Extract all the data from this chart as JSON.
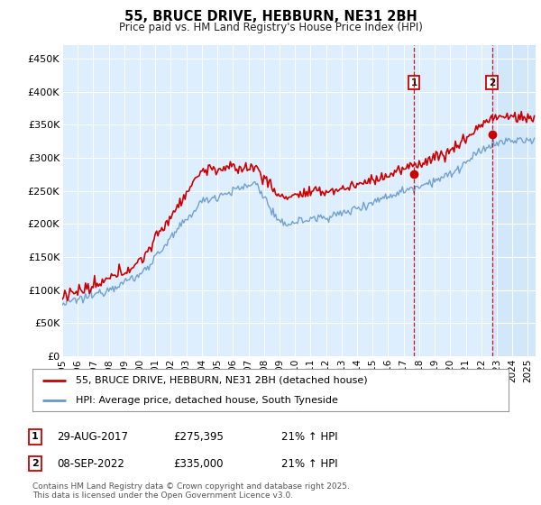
{
  "title": "55, BRUCE DRIVE, HEBBURN, NE31 2BH",
  "subtitle": "Price paid vs. HM Land Registry's House Price Index (HPI)",
  "ylabel_ticks": [
    "£0",
    "£50K",
    "£100K",
    "£150K",
    "£200K",
    "£250K",
    "£300K",
    "£350K",
    "£400K",
    "£450K"
  ],
  "ytick_values": [
    0,
    50000,
    100000,
    150000,
    200000,
    250000,
    300000,
    350000,
    400000,
    450000
  ],
  "ylim": [
    0,
    470000
  ],
  "xlim_start": 1995,
  "xlim_end": 2025.5,
  "marker1_x": 2017.66,
  "marker1_y": 275395,
  "marker2_x": 2022.69,
  "marker2_y": 335000,
  "marker1_label_date": "29-AUG-2017",
  "marker1_label_price": "£275,395",
  "marker1_label_hpi": "21% ↑ HPI",
  "marker2_label_date": "08-SEP-2022",
  "marker2_label_price": "£335,000",
  "marker2_label_hpi": "21% ↑ HPI",
  "legend_line1": "55, BRUCE DRIVE, HEBBURN, NE31 2BH (detached house)",
  "legend_line2": "HPI: Average price, detached house, South Tyneside",
  "footnote1": "Contains HM Land Registry data © Crown copyright and database right 2025.",
  "footnote2": "This data is licensed under the Open Government Licence v3.0.",
  "line1_color": "#cc0000",
  "line2_color": "#6699cc",
  "background_plot": "#ddeeff",
  "background_highlight": "#d0e4f7",
  "background_fig": "#ffffff",
  "grid_color": "#ffffff",
  "marker_box_color": "#cc0000",
  "dashed_line_color": "#cc0000"
}
